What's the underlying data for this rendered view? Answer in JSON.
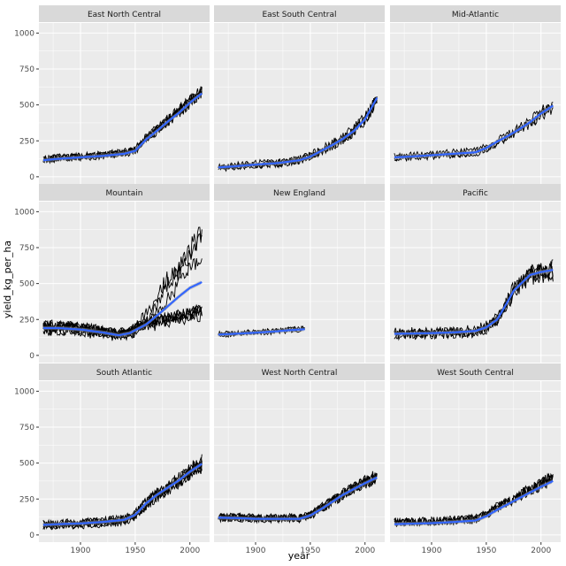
{
  "chart_data": {
    "type": "line",
    "layout": "facet-grid-3x3",
    "xlabel": "year",
    "ylabel": "yield_kg_per_ha",
    "x_ticks": [
      1900,
      1950,
      2000
    ],
    "y_ticks": [
      0,
      250,
      500,
      750,
      1000
    ],
    "xlim": [
      1862,
      2018
    ],
    "ylim": [
      -50,
      1070
    ],
    "colors": {
      "panel_bg": "#ebebeb",
      "grid": "#ffffff",
      "strip_bg": "#d9d9d9",
      "raw_lines": "#000000",
      "smooth": "#3366ff",
      "ribbon": "#999999"
    },
    "facets": [
      {
        "name": "East North Central",
        "smooth": [
          [
            1866,
            115
          ],
          [
            1880,
            125
          ],
          [
            1900,
            135
          ],
          [
            1920,
            145
          ],
          [
            1940,
            160
          ],
          [
            1950,
            180
          ],
          [
            1960,
            260
          ],
          [
            1970,
            320
          ],
          [
            1980,
            385
          ],
          [
            1990,
            445
          ],
          [
            2000,
            515
          ],
          [
            2011,
            580
          ]
        ],
        "series_count": 5,
        "noise": 30,
        "x_start": 1866,
        "x_end": 2011
      },
      {
        "name": "East South Central",
        "smooth": [
          [
            1866,
            65
          ],
          [
            1880,
            72
          ],
          [
            1900,
            85
          ],
          [
            1920,
            95
          ],
          [
            1940,
            115
          ],
          [
            1950,
            140
          ],
          [
            1960,
            180
          ],
          [
            1970,
            220
          ],
          [
            1980,
            265
          ],
          [
            1990,
            320
          ],
          [
            2000,
            400
          ],
          [
            2011,
            550
          ]
        ],
        "series_count": 4,
        "noise": 30,
        "x_start": 1866,
        "x_end": 2011
      },
      {
        "name": "Mid-Atlantic",
        "smooth": [
          [
            1866,
            135
          ],
          [
            1880,
            140
          ],
          [
            1900,
            150
          ],
          [
            1920,
            160
          ],
          [
            1940,
            170
          ],
          [
            1950,
            200
          ],
          [
            1960,
            245
          ],
          [
            1970,
            285
          ],
          [
            1980,
            330
          ],
          [
            1990,
            380
          ],
          [
            2000,
            440
          ],
          [
            2011,
            495
          ]
        ],
        "series_count": 3,
        "noise": 25,
        "x_start": 1866,
        "x_end": 2011
      },
      {
        "name": "Mountain",
        "smooth": [
          [
            1866,
            190
          ],
          [
            1880,
            190
          ],
          [
            1900,
            180
          ],
          [
            1920,
            160
          ],
          [
            1935,
            140
          ],
          [
            1945,
            155
          ],
          [
            1960,
            215
          ],
          [
            1975,
            310
          ],
          [
            1990,
            410
          ],
          [
            2000,
            470
          ],
          [
            2011,
            510
          ]
        ],
        "series_count": 8,
        "noise": 40,
        "x_start": 1866,
        "x_end": 2011,
        "top_branch": [
          [
            1950,
            200
          ],
          [
            1965,
            360
          ],
          [
            1980,
            560
          ],
          [
            1995,
            700
          ],
          [
            2011,
            880
          ]
        ]
      },
      {
        "name": "New England",
        "smooth": [
          [
            1866,
            145
          ],
          [
            1880,
            150
          ],
          [
            1900,
            158
          ],
          [
            1920,
            168
          ],
          [
            1930,
            175
          ],
          [
            1945,
            182
          ]
        ],
        "series_count": 3,
        "noise": 18,
        "x_start": 1866,
        "x_end": 1945
      },
      {
        "name": "Pacific",
        "smooth": [
          [
            1866,
            150
          ],
          [
            1880,
            152
          ],
          [
            1900,
            155
          ],
          [
            1920,
            160
          ],
          [
            1940,
            170
          ],
          [
            1950,
            195
          ],
          [
            1960,
            250
          ],
          [
            1970,
            380
          ],
          [
            1975,
            450
          ],
          [
            1990,
            560
          ],
          [
            2000,
            580
          ],
          [
            2011,
            595
          ]
        ],
        "series_count": 4,
        "noise": 40,
        "x_start": 1866,
        "x_end": 2011
      },
      {
        "name": "South Atlantic",
        "smooth": [
          [
            1866,
            70
          ],
          [
            1880,
            75
          ],
          [
            1900,
            80
          ],
          [
            1920,
            90
          ],
          [
            1940,
            105
          ],
          [
            1950,
            140
          ],
          [
            1960,
            220
          ],
          [
            1970,
            280
          ],
          [
            1980,
            330
          ],
          [
            1990,
            380
          ],
          [
            2000,
            440
          ],
          [
            2011,
            495
          ]
        ],
        "series_count": 6,
        "noise": 35,
        "x_start": 1866,
        "x_end": 2011
      },
      {
        "name": "West North Central",
        "smooth": [
          [
            1866,
            120
          ],
          [
            1880,
            118
          ],
          [
            1900,
            112
          ],
          [
            1920,
            112
          ],
          [
            1940,
            112
          ],
          [
            1950,
            135
          ],
          [
            1960,
            180
          ],
          [
            1970,
            230
          ],
          [
            1980,
            280
          ],
          [
            1990,
            320
          ],
          [
            2000,
            360
          ],
          [
            2011,
            400
          ]
        ],
        "series_count": 6,
        "noise": 35,
        "x_start": 1866,
        "x_end": 2011
      },
      {
        "name": "West South Central",
        "smooth": [
          [
            1866,
            75
          ],
          [
            1880,
            78
          ],
          [
            1900,
            82
          ],
          [
            1920,
            90
          ],
          [
            1940,
            100
          ],
          [
            1950,
            130
          ],
          [
            1960,
            175
          ],
          [
            1970,
            215
          ],
          [
            1980,
            255
          ],
          [
            1990,
            295
          ],
          [
            2000,
            335
          ],
          [
            2011,
            375
          ]
        ],
        "series_count": 4,
        "noise": 40,
        "x_start": 1866,
        "x_end": 2011
      }
    ]
  }
}
